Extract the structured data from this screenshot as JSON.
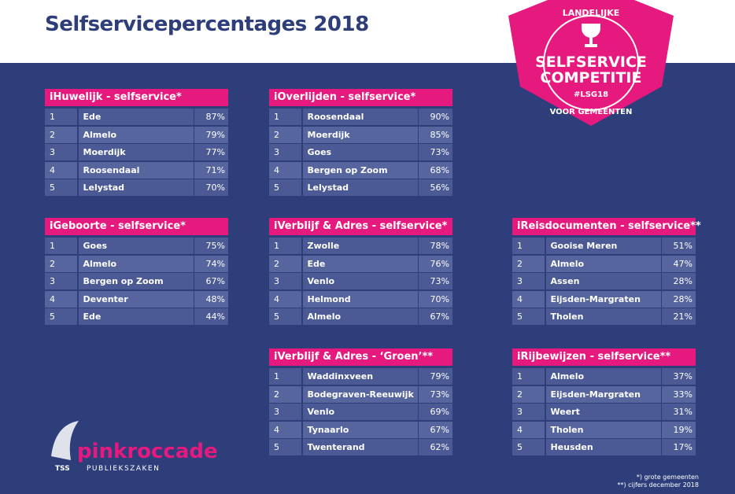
{
  "header": {
    "title": "Selfservicepercentages 2018"
  },
  "badge": {
    "top": "LANDELIJKE",
    "line1": "SELFSERVICE",
    "line2": "COMPETITIE",
    "tag": "#LSG18",
    "bottom": "VOOR GEMEENTEN"
  },
  "tables": [
    {
      "title": "iHuwelijk - selfservice*",
      "rows": [
        [
          "1",
          "Ede",
          "87%"
        ],
        [
          "2",
          "Almelo",
          "79%"
        ],
        [
          "3",
          "Moerdijk",
          "77%"
        ],
        [
          "4",
          "Roosendaal",
          "71%"
        ],
        [
          "5",
          "Lelystad",
          "70%"
        ]
      ]
    },
    {
      "title": "iOverlijden - selfservice*",
      "rows": [
        [
          "1",
          "Roosendaal",
          "90%"
        ],
        [
          "2",
          "Moerdijk",
          "85%"
        ],
        [
          "3",
          "Goes",
          "73%"
        ],
        [
          "4",
          "Bergen op Zoom",
          "68%"
        ],
        [
          "5",
          "Lelystad",
          "56%"
        ]
      ]
    },
    {
      "title": "iGeboorte - selfservice*",
      "rows": [
        [
          "1",
          "Goes",
          "75%"
        ],
        [
          "2",
          "Almelo",
          "74%"
        ],
        [
          "3",
          "Bergen op Zoom",
          "67%"
        ],
        [
          "4",
          "Deventer",
          "48%"
        ],
        [
          "5",
          "Ede",
          "44%"
        ]
      ]
    },
    {
      "title": "iVerblijf & Adres - selfservice*",
      "rows": [
        [
          "1",
          "Zwolle",
          "78%"
        ],
        [
          "2",
          "Ede",
          "76%"
        ],
        [
          "3",
          "Venlo",
          "73%"
        ],
        [
          "4",
          "Helmond",
          "70%"
        ],
        [
          "5",
          "Almelo",
          "67%"
        ]
      ]
    },
    {
      "title": "iReisdocumenten - selfservice**",
      "rows": [
        [
          "1",
          "Gooise Meren",
          "51%"
        ],
        [
          "2",
          "Almelo",
          "47%"
        ],
        [
          "3",
          "Assen",
          "28%"
        ],
        [
          "4",
          "Eijsden-Margraten",
          "28%"
        ],
        [
          "5",
          "Tholen",
          "21%"
        ]
      ]
    },
    {
      "title": "iVerblijf & Adres - ‘Groen’**",
      "rows": [
        [
          "1",
          "Waddinxveen",
          "79%"
        ],
        [
          "2",
          "Bodegraven-Reeuwijk",
          "73%"
        ],
        [
          "3",
          "Venlo",
          "69%"
        ],
        [
          "4",
          "Tynaarlo",
          "67%"
        ],
        [
          "5",
          "Twenterand",
          "62%"
        ]
      ]
    },
    {
      "title": "iRijbewijzen - selfservice**",
      "rows": [
        [
          "1",
          "Almelo",
          "37%"
        ],
        [
          "2",
          "Eijsden-Margraten",
          "33%"
        ],
        [
          "3",
          "Weert",
          "31%"
        ],
        [
          "4",
          "Tholen",
          "19%"
        ],
        [
          "5",
          "Heusden",
          "17%"
        ]
      ]
    }
  ],
  "logo": {
    "name": "pinkroccade",
    "tss": "TSS",
    "sub": "PUBLIEKSZAKEN"
  },
  "notes": [
    "*) grote gemeenten",
    "**) cijfers december 2018"
  ]
}
